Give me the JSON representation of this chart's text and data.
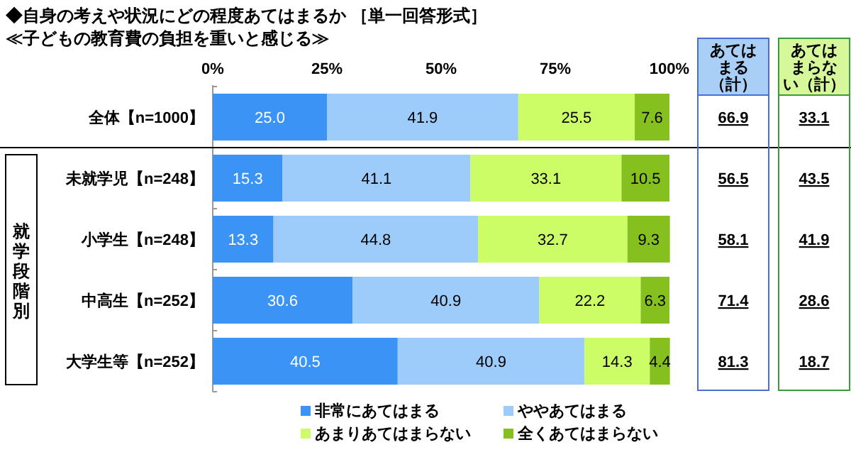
{
  "chart_data": [
    {
      "type": "bar",
      "orientation": "horizontal",
      "stacked": true,
      "title": "◆自身の考えや状況にどの程度あてはまるか ［単一回答形式］",
      "subtitle": "≪子どもの教育費の負担を重いと感じる≫",
      "categories": [
        "全体【n=1000】",
        "未就学児【n=248】",
        "小学生【n=248】",
        "中高生【n=252】",
        "大学生等【n=252】"
      ],
      "series": [
        {
          "name": "非常にあてはまる",
          "color": "#3b94f5",
          "values": [
            25.0,
            15.3,
            13.3,
            30.6,
            40.5
          ],
          "value_labels": [
            "25.0",
            "15.3",
            "13.3",
            "30.6",
            "40.5"
          ]
        },
        {
          "name": "ややあてはまる",
          "color": "#9dcbfa",
          "values": [
            41.9,
            41.1,
            44.8,
            40.9,
            40.9
          ],
          "value_labels": [
            "41.9",
            "41.1",
            "44.8",
            "40.9",
            "40.9"
          ]
        },
        {
          "name": "あまりあてはまらない",
          "color": "#ccfc66",
          "values": [
            25.5,
            33.1,
            32.7,
            22.2,
            14.3
          ],
          "value_labels": [
            "25.5",
            "33.1",
            "32.7",
            "22.2",
            "14.3"
          ]
        },
        {
          "name": "全くあてはまらない",
          "color": "#86c01e",
          "values": [
            7.6,
            10.5,
            9.3,
            6.3,
            4.4
          ],
          "value_labels": [
            "7.6",
            "10.5",
            "9.3",
            "6.3",
            "4.4"
          ]
        }
      ],
      "xlim": [
        0,
        100
      ],
      "xticks": [
        {
          "value": 0,
          "label": "0%"
        },
        {
          "value": 25,
          "label": "25%"
        },
        {
          "value": 50,
          "label": "50%"
        },
        {
          "value": 75,
          "label": "75%"
        },
        {
          "value": 100,
          "label": "100%"
        }
      ],
      "legend": "bottom",
      "grid": false,
      "annotations": [
        "就学段階別"
      ]
    },
    {
      "type": "other",
      "title": "あてはまる（計）",
      "annotations": [
        "66.9",
        "56.5",
        "58.1",
        "71.4",
        "81.3"
      ]
    },
    {
      "type": "other",
      "title": "あてはまらない（計）",
      "annotations": [
        "33.1",
        "43.5",
        "41.9",
        "28.6",
        "18.7"
      ]
    }
  ]
}
